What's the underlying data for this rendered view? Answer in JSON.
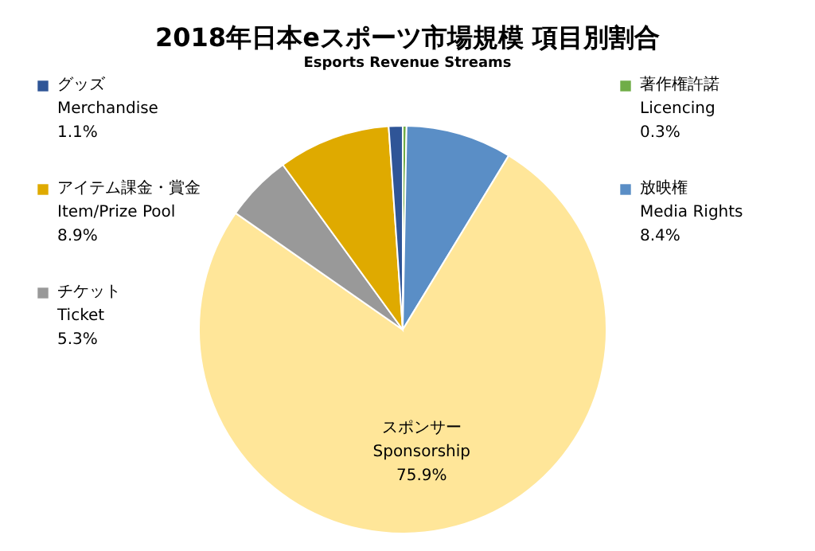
{
  "chart_data": {
    "type": "pie",
    "title": "2018年日本eスポーツ市場規模 項目別割合",
    "subtitle": "Esports Revenue Streams",
    "categories": [
      "著作権許諾\nLicencing",
      "放映権\nMedia Rights",
      "スポンサー\nSponsorship",
      "チケット\nTicket",
      "アイテム課金・賞金\nItem/Prize Pool",
      "グッズ\nMerchandise"
    ],
    "values": [
      0.3,
      8.4,
      75.9,
      5.3,
      8.9,
      1.1
    ],
    "colors": [
      "#70ad47",
      "#5a8ec6",
      "#ffe699",
      "#999999",
      "#dfaa00",
      "#2f5597"
    ],
    "legend": "top",
    "value_labels": [
      "0.3%",
      "8.4%",
      "75.9%",
      "5.3%",
      "8.9%",
      "1.1%"
    ]
  }
}
